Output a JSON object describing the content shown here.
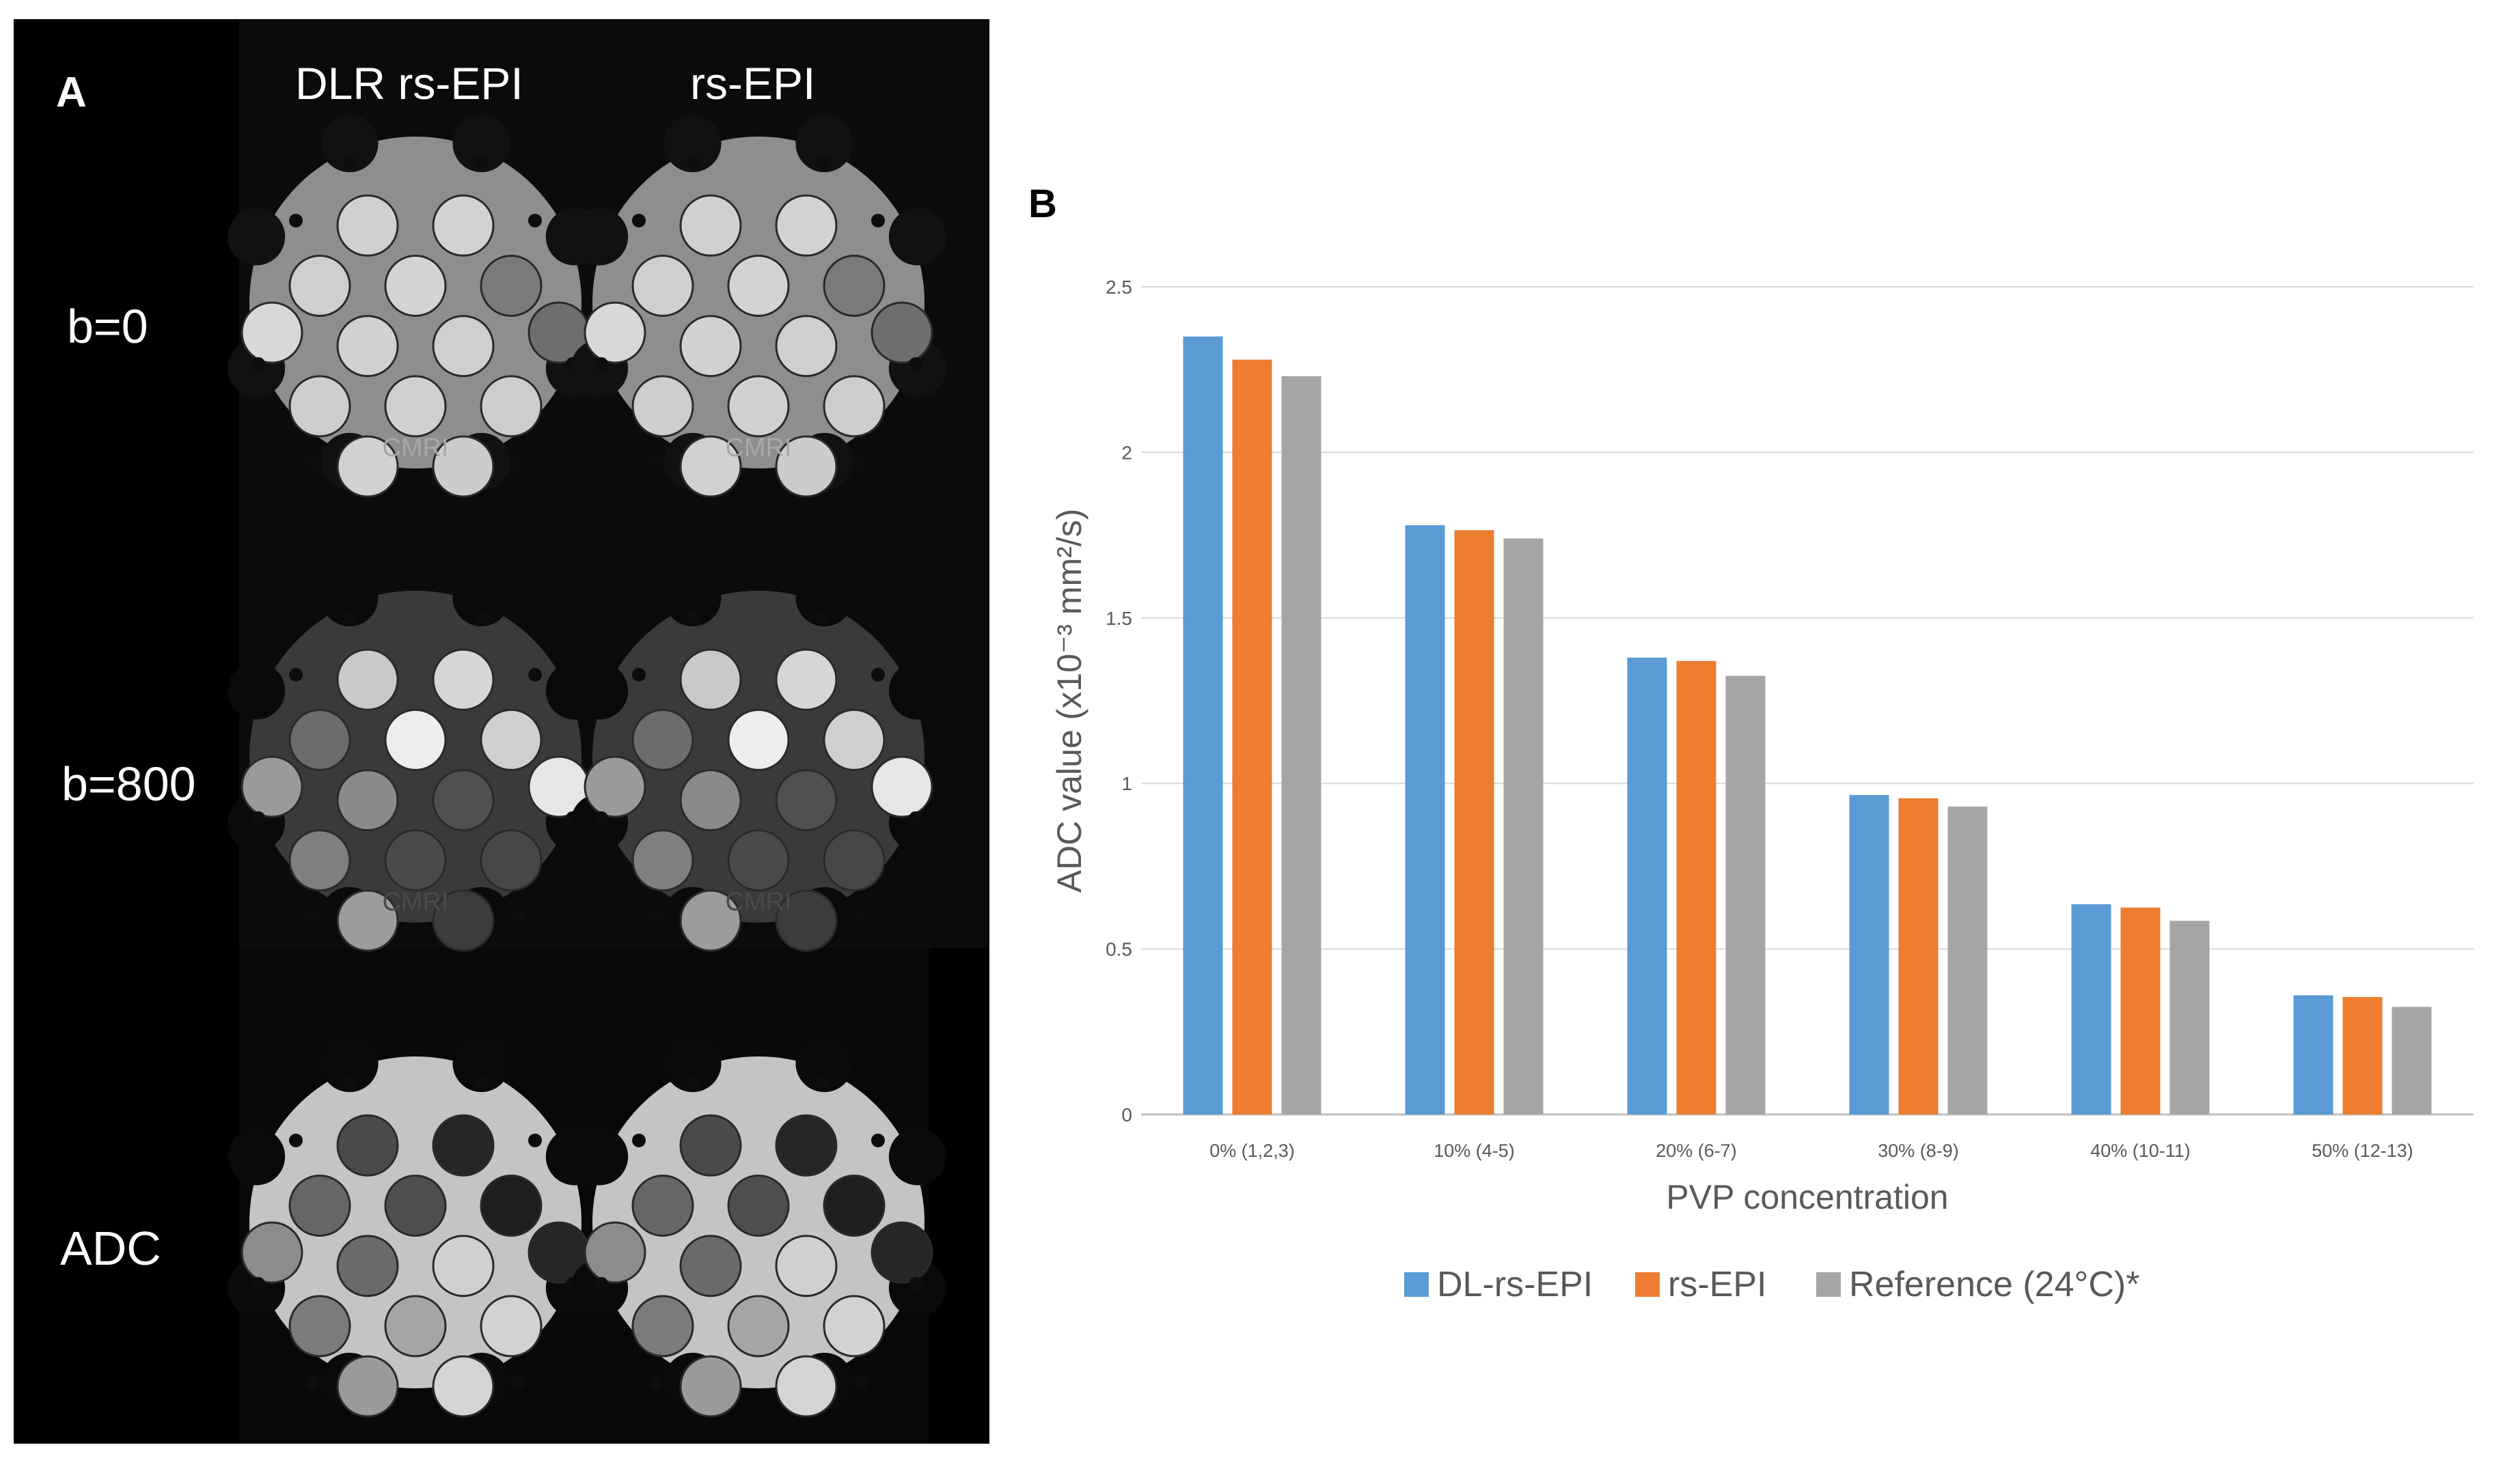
{
  "panel_a": {
    "letter": "A",
    "columns": [
      "DLR rs-EPI",
      "rs-EPI"
    ],
    "rows": [
      "b=0",
      "b=800",
      "ADC"
    ],
    "phantom_text": "CMRI"
  },
  "panel_b": {
    "letter": "B"
  },
  "chart_data": {
    "type": "bar",
    "title": "",
    "xlabel": "PVP concentration",
    "ylabel": "ADC value (x10⁻³ mm²/s)",
    "categories": [
      "0% (1,2,3)",
      "10% (4-5)",
      "20% (6-7)",
      "30% (8-9)",
      "40% (10-11)",
      "50% (12-13)"
    ],
    "series": [
      {
        "name": "DL-rs-EPI",
        "color": "#5b9bd5",
        "values": [
          2.35,
          1.78,
          1.38,
          0.965,
          0.635,
          0.36
        ]
      },
      {
        "name": "rs-EPI",
        "color": "#ed7d31",
        "values": [
          2.28,
          1.765,
          1.37,
          0.955,
          0.625,
          0.355
        ]
      },
      {
        "name": "Reference (24°C)*",
        "color": "#a5a5a5",
        "values": [
          2.23,
          1.74,
          1.325,
          0.93,
          0.585,
          0.325
        ]
      }
    ],
    "yticks": [
      "0",
      "0.5",
      "1",
      "1.5",
      "2",
      "2.5"
    ],
    "ylim": [
      0,
      2.5
    ],
    "grid": true,
    "legend": "bottom"
  }
}
